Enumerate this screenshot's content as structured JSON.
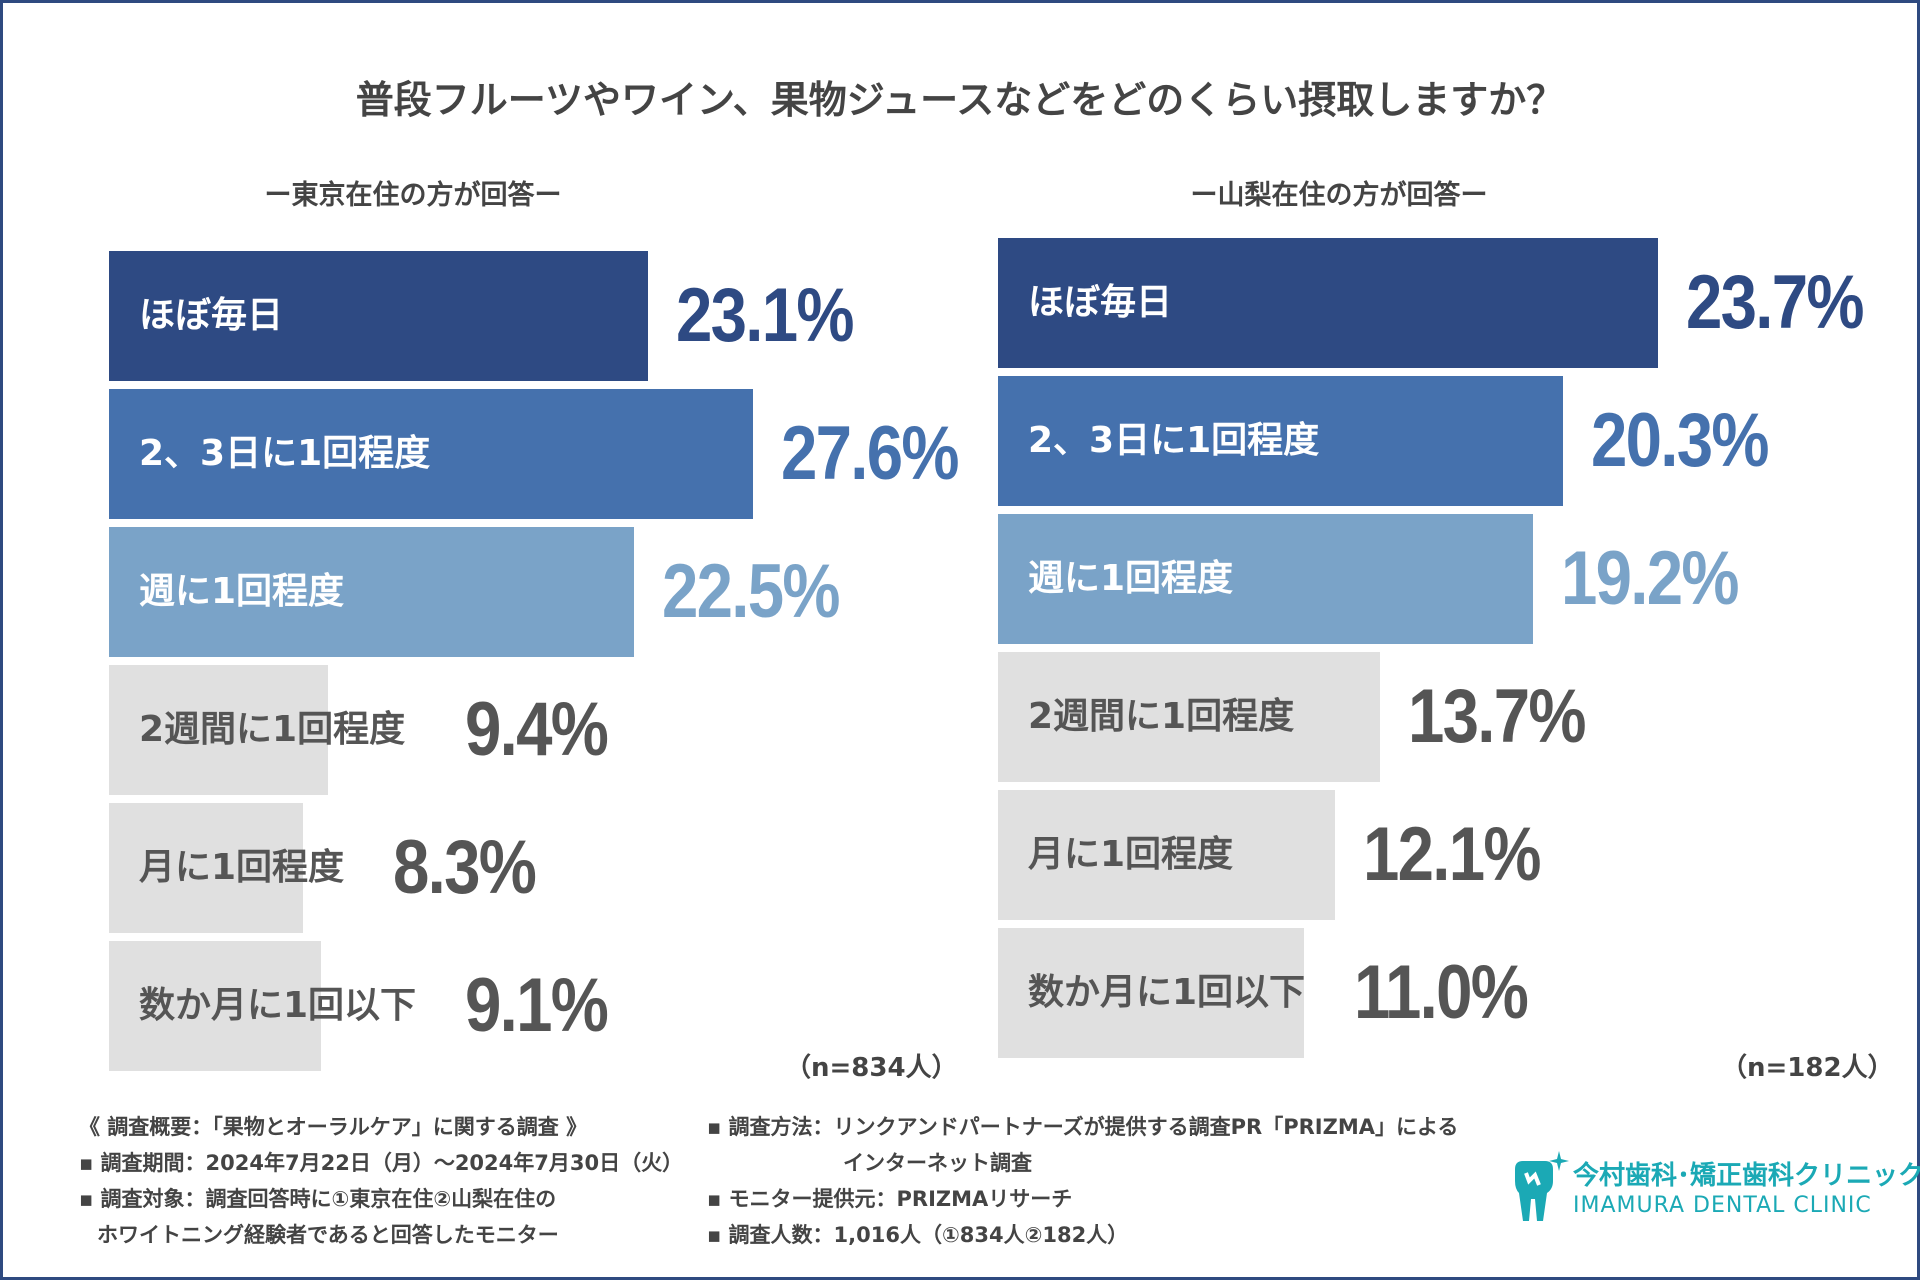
{
  "title": "普段フルーツやワイン、果物ジュースなどをどのくらい摂取しますか？",
  "colors": {
    "frame": "#2f4a80",
    "series": [
      "#2e4a83",
      "#4571ad",
      "#7aa3c8",
      "#e0e0e0",
      "#e0e0e0",
      "#e0e0e0"
    ],
    "text_light": "#ffffff",
    "text_dark": "#555555",
    "value_gray": "#555555",
    "logo": "#1ba9b5"
  },
  "chart_data": [
    {
      "type": "bar",
      "orientation": "horizontal",
      "title": "ー東京在住の方が回答ー",
      "categories": [
        "ほぼ毎日",
        "2、3日に1回程度",
        "週に1回程度",
        "2週間に1回程度",
        "月に1回程度",
        "数か月に1回以下"
      ],
      "values": [
        23.1,
        27.6,
        22.5,
        9.4,
        8.3,
        9.1
      ],
      "value_labels": [
        "23.1%",
        "27.6%",
        "22.5%",
        "9.4%",
        "8.3%",
        "9.1%"
      ],
      "unit": "%",
      "xlim": [
        0,
        27.6
      ],
      "n_label": "（n=834人）"
    },
    {
      "type": "bar",
      "orientation": "horizontal",
      "title": "ー山梨在住の方が回答ー",
      "categories": [
        "ほぼ毎日",
        "2、3日に1回程度",
        "週に1回程度",
        "2週間に1回程度",
        "月に1回程度",
        "数か月に1回以下"
      ],
      "values": [
        23.7,
        20.3,
        19.2,
        13.7,
        12.1,
        11.0
      ],
      "value_labels": [
        "23.7%",
        "20.3%",
        "19.2%",
        "13.7%",
        "12.1%",
        "11.0%"
      ],
      "unit": "%",
      "xlim": [
        0,
        23.7
      ],
      "n_label": "（n=182人）"
    }
  ],
  "notes": {
    "left": [
      "《 調査概要：「果物とオーラルケア」に関する調査 》",
      "▪ 調査期間：2024年7月22日（月）〜2024年7月30日（火）",
      "▪ 調査対象：調査回答時に①東京在住②山梨在住の",
      "ホワイトニング経験者であると回答したモニター"
    ],
    "right": [
      "▪ 調査方法：リンクアンドパートナーズが提供する調査PR「PRIZMA」による",
      "インターネット調査",
      "▪ モニター提供元：PRIZMAリサーチ",
      "▪ 調査人数：1,016人（①834人②182人）"
    ]
  },
  "logo": {
    "name_jp": "今村歯科･矯正歯科クリニック",
    "name_en": "IMAMURA DENTAL CLINIC",
    "icon": "tooth-sparkle-icon"
  }
}
